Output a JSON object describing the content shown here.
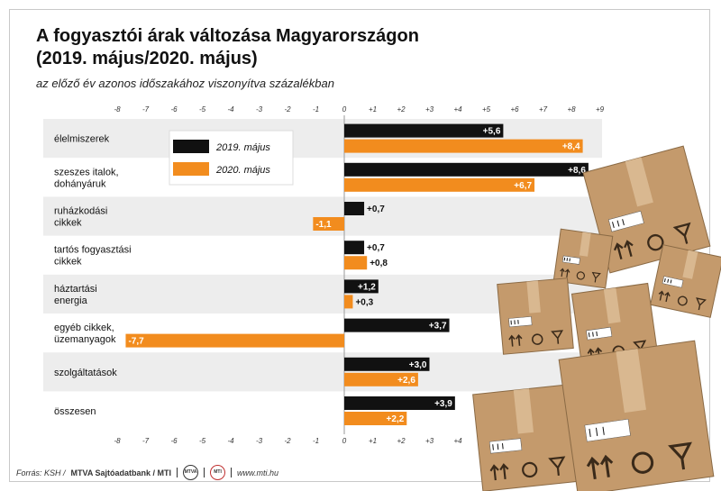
{
  "title_line1": "A fogyasztói árak változása Magyarországon",
  "title_line2": "(2019. május/2020. május)",
  "subtitle": "az előző év azonos időszakához viszonyítva százalékban",
  "footer": {
    "source": "Forrás: KSH / ",
    "agency": "MTVA Sajtóadatbank / MTI",
    "logo1": "MTVA",
    "logo2": "MTI",
    "url": "www.mti.hu"
  },
  "colors": {
    "series_2019": "#111111",
    "series_2020": "#f28c1e",
    "band": "#ededed",
    "box": "#c49a6c"
  },
  "chart_data": {
    "type": "bar",
    "orientation": "horizontal",
    "title": "A fogyasztói árak változása Magyarországon (2019. május/2020. május)",
    "subtitle": "az előző év azonos időszakához viszonyítva százalékban",
    "categories": [
      [
        "élelmiszerek"
      ],
      [
        "szeszes italok,",
        "dohányáruk"
      ],
      [
        "ruházkodási",
        "cikkek"
      ],
      [
        "tartós fogyasztási",
        "cikkek"
      ],
      [
        "háztartási",
        "energia"
      ],
      [
        "egyéb cikkek,",
        "üzemanyagok"
      ],
      [
        "szolgáltatások"
      ],
      [
        "összesen"
      ]
    ],
    "series": [
      {
        "name": "2019. május",
        "values": [
          5.6,
          8.6,
          0.7,
          0.7,
          1.2,
          3.7,
          3.0,
          3.9
        ],
        "labels": [
          "+5,6",
          "+8,6",
          "+0,7",
          "+0,7",
          "+1,2",
          "+3,7",
          "+3,0",
          "+3,9"
        ]
      },
      {
        "name": "2020. május",
        "values": [
          8.4,
          6.7,
          -1.1,
          0.8,
          0.3,
          -7.7,
          2.6,
          2.2
        ],
        "labels": [
          "+8,4",
          "+6,7",
          "-1,1",
          "+0,8",
          "+0,3",
          "-7,7",
          "+2,6",
          "+2,2"
        ]
      }
    ],
    "xlim": [
      -8,
      9
    ],
    "ticks": [
      -8,
      -7,
      -6,
      -5,
      -4,
      -3,
      -2,
      -1,
      0,
      1,
      2,
      3,
      4,
      5,
      6,
      7,
      8,
      9
    ],
    "tick_labels": [
      "-8",
      "-7",
      "-6",
      "-5",
      "-4",
      "-3",
      "-2",
      "-1",
      "0",
      "+1",
      "+2",
      "+3",
      "+4",
      "+5",
      "+6",
      "+7",
      "+8",
      "+9"
    ],
    "legend_placement": "top-left",
    "grid": false
  }
}
